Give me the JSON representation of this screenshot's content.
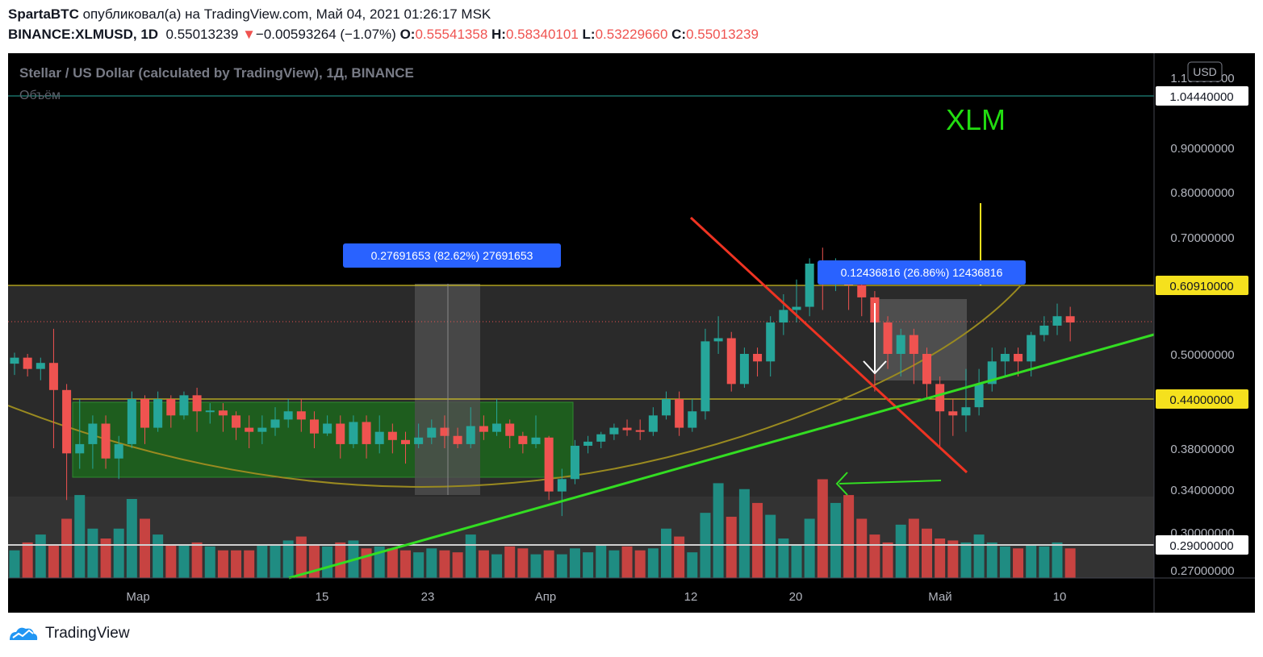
{
  "header": {
    "author": "SpartaBTC",
    "published": "опубликовал(а) на TradingView.com, Май 04, 2021 01:26:17 MSK",
    "symbol": "BINANCE:XLMUSD, 1D",
    "last": "0.55013239",
    "change_arrow": "▼",
    "change": "−0.00593264 (−1.07%)",
    "o_label": "O:",
    "o": "0.55541358",
    "h_label": "H:",
    "h": "0.58340101",
    "l_label": "L:",
    "l": "0.53229660",
    "c_label": "C:",
    "c": "0.55013239"
  },
  "chart_title": "Stellar / US Dollar (calculated by TradingView), 1Д, BINANCE",
  "volume_label": "Объём",
  "currency_button": "USD",
  "xlm_label": "XLM",
  "footer_brand": "TradingView",
  "colors": {
    "up": "#26a69a",
    "down": "#ef5350",
    "background": "#000000",
    "green_line": "#33dd22",
    "red_line": "#ee3322",
    "yellow": "#f5e11d",
    "badge": "#2962ff"
  },
  "chart_data": {
    "type": "candlestick",
    "y_ticks": [
      "1.10000000",
      "0.90000000",
      "0.80000000",
      "0.70000000",
      "0.60910000",
      "0.50000000",
      "0.44000000",
      "0.38000000",
      "0.34000000",
      "0.30000000",
      "0.29000000",
      "0.27000000"
    ],
    "price_labels": [
      {
        "value": "1.04440000",
        "style": "white"
      },
      {
        "value": "0.60910000",
        "style": "yellow"
      },
      {
        "value": "0.44000000",
        "style": "yellow"
      },
      {
        "value": "0.29000000",
        "style": "white"
      }
    ],
    "x_ticks": [
      "Мар",
      "15",
      "23",
      "Апр",
      "12",
      "20",
      "Май",
      "10"
    ],
    "measure_labels": [
      "0.27691653 (82.62%) 27691653",
      "0.12436816 (26.86%) 12436816"
    ],
    "candles": [
      [
        0.487,
        0.495,
        0.472,
        0.502
      ],
      [
        0.495,
        0.48,
        0.47,
        0.5
      ],
      [
        0.48,
        0.488,
        0.465,
        0.495
      ],
      [
        0.488,
        0.452,
        0.38,
        0.54
      ],
      [
        0.452,
        0.375,
        0.33,
        0.46
      ],
      [
        0.375,
        0.385,
        0.36,
        0.44
      ],
      [
        0.385,
        0.41,
        0.36,
        0.42
      ],
      [
        0.41,
        0.37,
        0.36,
        0.42
      ],
      [
        0.37,
        0.385,
        0.35,
        0.395
      ],
      [
        0.385,
        0.44,
        0.38,
        0.45
      ],
      [
        0.44,
        0.405,
        0.385,
        0.445
      ],
      [
        0.405,
        0.44,
        0.4,
        0.45
      ],
      [
        0.44,
        0.42,
        0.405,
        0.445
      ],
      [
        0.42,
        0.445,
        0.415,
        0.45
      ],
      [
        0.445,
        0.425,
        0.4,
        0.455
      ],
      [
        0.425,
        0.426,
        0.41,
        0.435
      ],
      [
        0.426,
        0.42,
        0.4,
        0.435
      ],
      [
        0.42,
        0.405,
        0.39,
        0.425
      ],
      [
        0.405,
        0.4,
        0.38,
        0.42
      ],
      [
        0.4,
        0.405,
        0.385,
        0.42
      ],
      [
        0.405,
        0.415,
        0.395,
        0.43
      ],
      [
        0.415,
        0.425,
        0.405,
        0.44
      ],
      [
        0.425,
        0.415,
        0.4,
        0.44
      ],
      [
        0.415,
        0.398,
        0.38,
        0.425
      ],
      [
        0.398,
        0.41,
        0.395,
        0.42
      ],
      [
        0.41,
        0.385,
        0.37,
        0.42
      ],
      [
        0.385,
        0.412,
        0.38,
        0.42
      ],
      [
        0.412,
        0.385,
        0.37,
        0.42
      ],
      [
        0.385,
        0.4,
        0.375,
        0.42
      ],
      [
        0.4,
        0.39,
        0.375,
        0.41
      ],
      [
        0.39,
        0.385,
        0.365,
        0.4
      ],
      [
        0.385,
        0.393,
        0.38,
        0.41
      ],
      [
        0.393,
        0.405,
        0.385,
        0.415
      ],
      [
        0.405,
        0.395,
        0.38,
        0.42
      ],
      [
        0.395,
        0.385,
        0.38,
        0.405
      ],
      [
        0.385,
        0.407,
        0.38,
        0.43
      ],
      [
        0.407,
        0.4,
        0.39,
        0.42
      ],
      [
        0.4,
        0.41,
        0.395,
        0.44
      ],
      [
        0.41,
        0.395,
        0.38,
        0.415
      ],
      [
        0.395,
        0.385,
        0.375,
        0.4
      ],
      [
        0.385,
        0.393,
        0.38,
        0.42
      ],
      [
        0.393,
        0.338,
        0.33,
        0.395
      ],
      [
        0.338,
        0.35,
        0.315,
        0.36
      ],
      [
        0.35,
        0.383,
        0.345,
        0.39
      ],
      [
        0.383,
        0.388,
        0.375,
        0.395
      ],
      [
        0.388,
        0.397,
        0.38,
        0.4
      ],
      [
        0.397,
        0.405,
        0.39,
        0.41
      ],
      [
        0.405,
        0.402,
        0.395,
        0.415
      ],
      [
        0.402,
        0.4,
        0.39,
        0.415
      ],
      [
        0.4,
        0.42,
        0.395,
        0.43
      ],
      [
        0.42,
        0.44,
        0.415,
        0.45
      ],
      [
        0.44,
        0.405,
        0.395,
        0.45
      ],
      [
        0.405,
        0.425,
        0.4,
        0.44
      ],
      [
        0.425,
        0.52,
        0.415,
        0.54
      ],
      [
        0.52,
        0.525,
        0.5,
        0.56
      ],
      [
        0.525,
        0.46,
        0.45,
        0.535
      ],
      [
        0.46,
        0.5,
        0.455,
        0.51
      ],
      [
        0.5,
        0.49,
        0.47,
        0.51
      ],
      [
        0.49,
        0.55,
        0.47,
        0.56
      ],
      [
        0.55,
        0.57,
        0.53,
        0.595
      ],
      [
        0.57,
        0.575,
        0.55,
        0.62
      ],
      [
        0.575,
        0.65,
        0.56,
        0.66
      ],
      [
        0.65,
        0.64,
        0.57,
        0.68
      ],
      [
        0.64,
        0.64,
        0.6,
        0.66
      ],
      [
        0.64,
        0.61,
        0.57,
        0.65
      ],
      [
        0.61,
        0.59,
        0.56,
        0.63
      ],
      [
        0.59,
        0.55,
        0.45,
        0.6
      ],
      [
        0.55,
        0.5,
        0.48,
        0.56
      ],
      [
        0.5,
        0.53,
        0.47,
        0.54
      ],
      [
        0.53,
        0.5,
        0.46,
        0.54
      ],
      [
        0.5,
        0.46,
        0.44,
        0.51
      ],
      [
        0.46,
        0.425,
        0.38,
        0.47
      ],
      [
        0.425,
        0.42,
        0.395,
        0.44
      ],
      [
        0.42,
        0.43,
        0.4,
        0.48
      ],
      [
        0.43,
        0.46,
        0.42,
        0.48
      ],
      [
        0.46,
        0.49,
        0.45,
        0.51
      ],
      [
        0.49,
        0.5,
        0.47,
        0.51
      ],
      [
        0.5,
        0.49,
        0.47,
        0.51
      ],
      [
        0.49,
        0.53,
        0.47,
        0.535
      ],
      [
        0.53,
        0.545,
        0.52,
        0.56
      ],
      [
        0.545,
        0.56,
        0.53,
        0.58
      ],
      [
        0.56,
        0.55,
        0.52,
        0.575
      ]
    ],
    "volumes": [
      14,
      18,
      22,
      17,
      30,
      42,
      25,
      20,
      25,
      40,
      30,
      22,
      17,
      17,
      18,
      16,
      14,
      14,
      14,
      17,
      17,
      19,
      21,
      17,
      16,
      18,
      19,
      15,
      16,
      15,
      14,
      13,
      15,
      14,
      13,
      22,
      14,
      12,
      16,
      15,
      12,
      14,
      12,
      15,
      13,
      17,
      14,
      16,
      14,
      15,
      25,
      21,
      13,
      33,
      48,
      31,
      45,
      38,
      32,
      20,
      17,
      30,
      50,
      38,
      42,
      30,
      22,
      18,
      27,
      30,
      25,
      20,
      19,
      18,
      22,
      18,
      16,
      15,
      17,
      16,
      18,
      15
    ]
  }
}
